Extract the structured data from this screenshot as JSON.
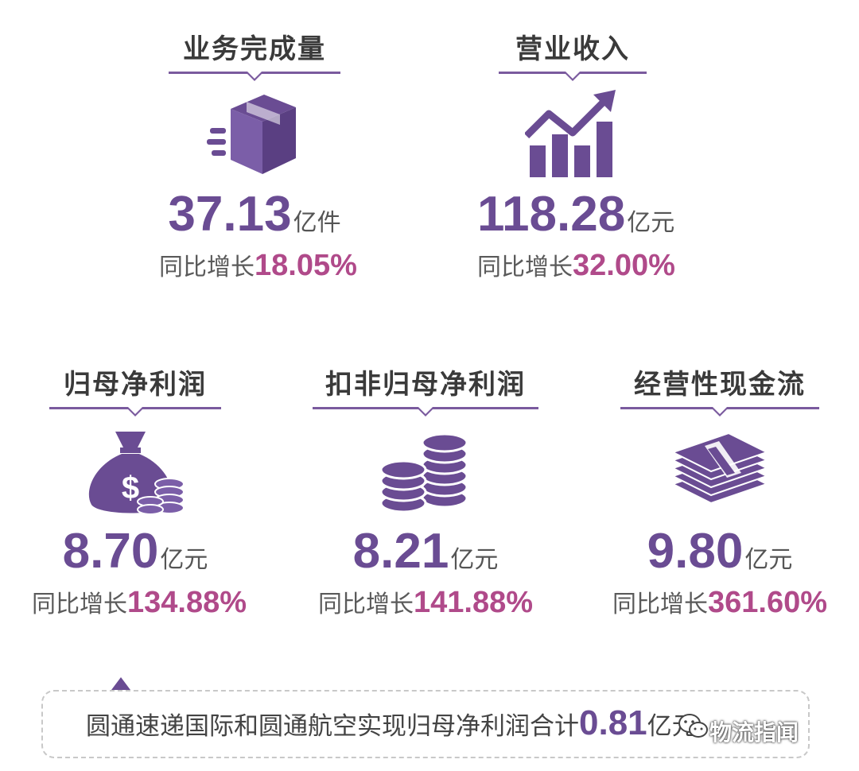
{
  "cards": [
    {
      "title": "业务完成量",
      "icon": "package-box-icon",
      "value": "37.13",
      "unit": "亿件",
      "growth_label": "同比增长",
      "growth_value": "18.05%"
    },
    {
      "title": "营业收入",
      "icon": "growth-chart-icon",
      "value": "118.28",
      "unit": "亿元",
      "growth_label": "同比增长",
      "growth_value": "32.00%"
    },
    {
      "title": "归母净利润",
      "icon": "money-bag-icon",
      "value": "8.70",
      "unit": "亿元",
      "growth_label": "同比增长",
      "growth_value": "134.88%"
    },
    {
      "title": "扣非归母净利润",
      "icon": "coin-stacks-icon",
      "value": "8.21",
      "unit": "亿元",
      "growth_label": "同比增长",
      "growth_value": "141.88%"
    },
    {
      "title": "经营性现金流",
      "icon": "cash-bundle-icon",
      "value": "9.80",
      "unit": "亿元",
      "growth_label": "同比增长",
      "growth_value": "361.60%"
    }
  ],
  "note": {
    "text": "圆通速递国际和圆通航空实现归母净利润合计",
    "value": "0.81",
    "unit": "亿元"
  },
  "watermark": {
    "text": "物流指闻",
    "icon": "wechat-icon"
  },
  "colors": {
    "accent": "#6a4c93",
    "growth": "#b04a8a",
    "line": "#7a5a9e"
  }
}
